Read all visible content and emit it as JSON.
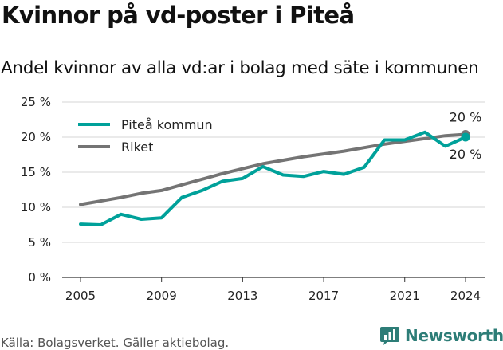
{
  "title": "Kvinnor på vd-poster i Piteå",
  "subtitle": "Andel kvinnor av alla vd:ar i bolag med säte i kommunen",
  "footer": "Källa: Bolagsverket. Gäller aktiebolag.",
  "logo_text": "Newsworthy",
  "logo_icon": "newsworthy-chart-icon",
  "chart_data": {
    "type": "line",
    "title": "Kvinnor på vd-poster i Piteå",
    "subtitle": "Andel kvinnor av alla vd:ar i bolag med säte i kommunen",
    "x": [
      2005,
      2006,
      2007,
      2008,
      2009,
      2010,
      2011,
      2012,
      2013,
      2014,
      2015,
      2016,
      2017,
      2018,
      2019,
      2020,
      2021,
      2022,
      2023,
      2024
    ],
    "xticks": [
      2005,
      2009,
      2013,
      2017,
      2021,
      2024
    ],
    "xlim": [
      2005,
      2024
    ],
    "yticks": [
      0,
      5,
      10,
      15,
      20,
      25
    ],
    "ytick_labels": [
      "0 %",
      "5 %",
      "10 %",
      "15 %",
      "20 %",
      "25 %"
    ],
    "ylim": [
      0,
      25
    ],
    "grid": true,
    "legend": "top-left",
    "series": [
      {
        "name": "Piteå kommun",
        "color": "#00a19a",
        "values": [
          7.6,
          7.5,
          9.0,
          8.3,
          8.5,
          11.4,
          12.4,
          13.7,
          14.1,
          15.8,
          14.6,
          14.4,
          15.1,
          14.7,
          15.7,
          19.6,
          19.6,
          20.7,
          18.7,
          20.0
        ],
        "end_label": "20 %"
      },
      {
        "name": "Riket",
        "color": "#747474",
        "values": [
          10.4,
          10.9,
          11.4,
          12.0,
          12.4,
          13.2,
          14.0,
          14.8,
          15.5,
          16.2,
          16.7,
          17.2,
          17.6,
          18.0,
          18.5,
          19.0,
          19.4,
          19.8,
          20.2,
          20.4
        ],
        "end_label": "20 %"
      }
    ]
  }
}
